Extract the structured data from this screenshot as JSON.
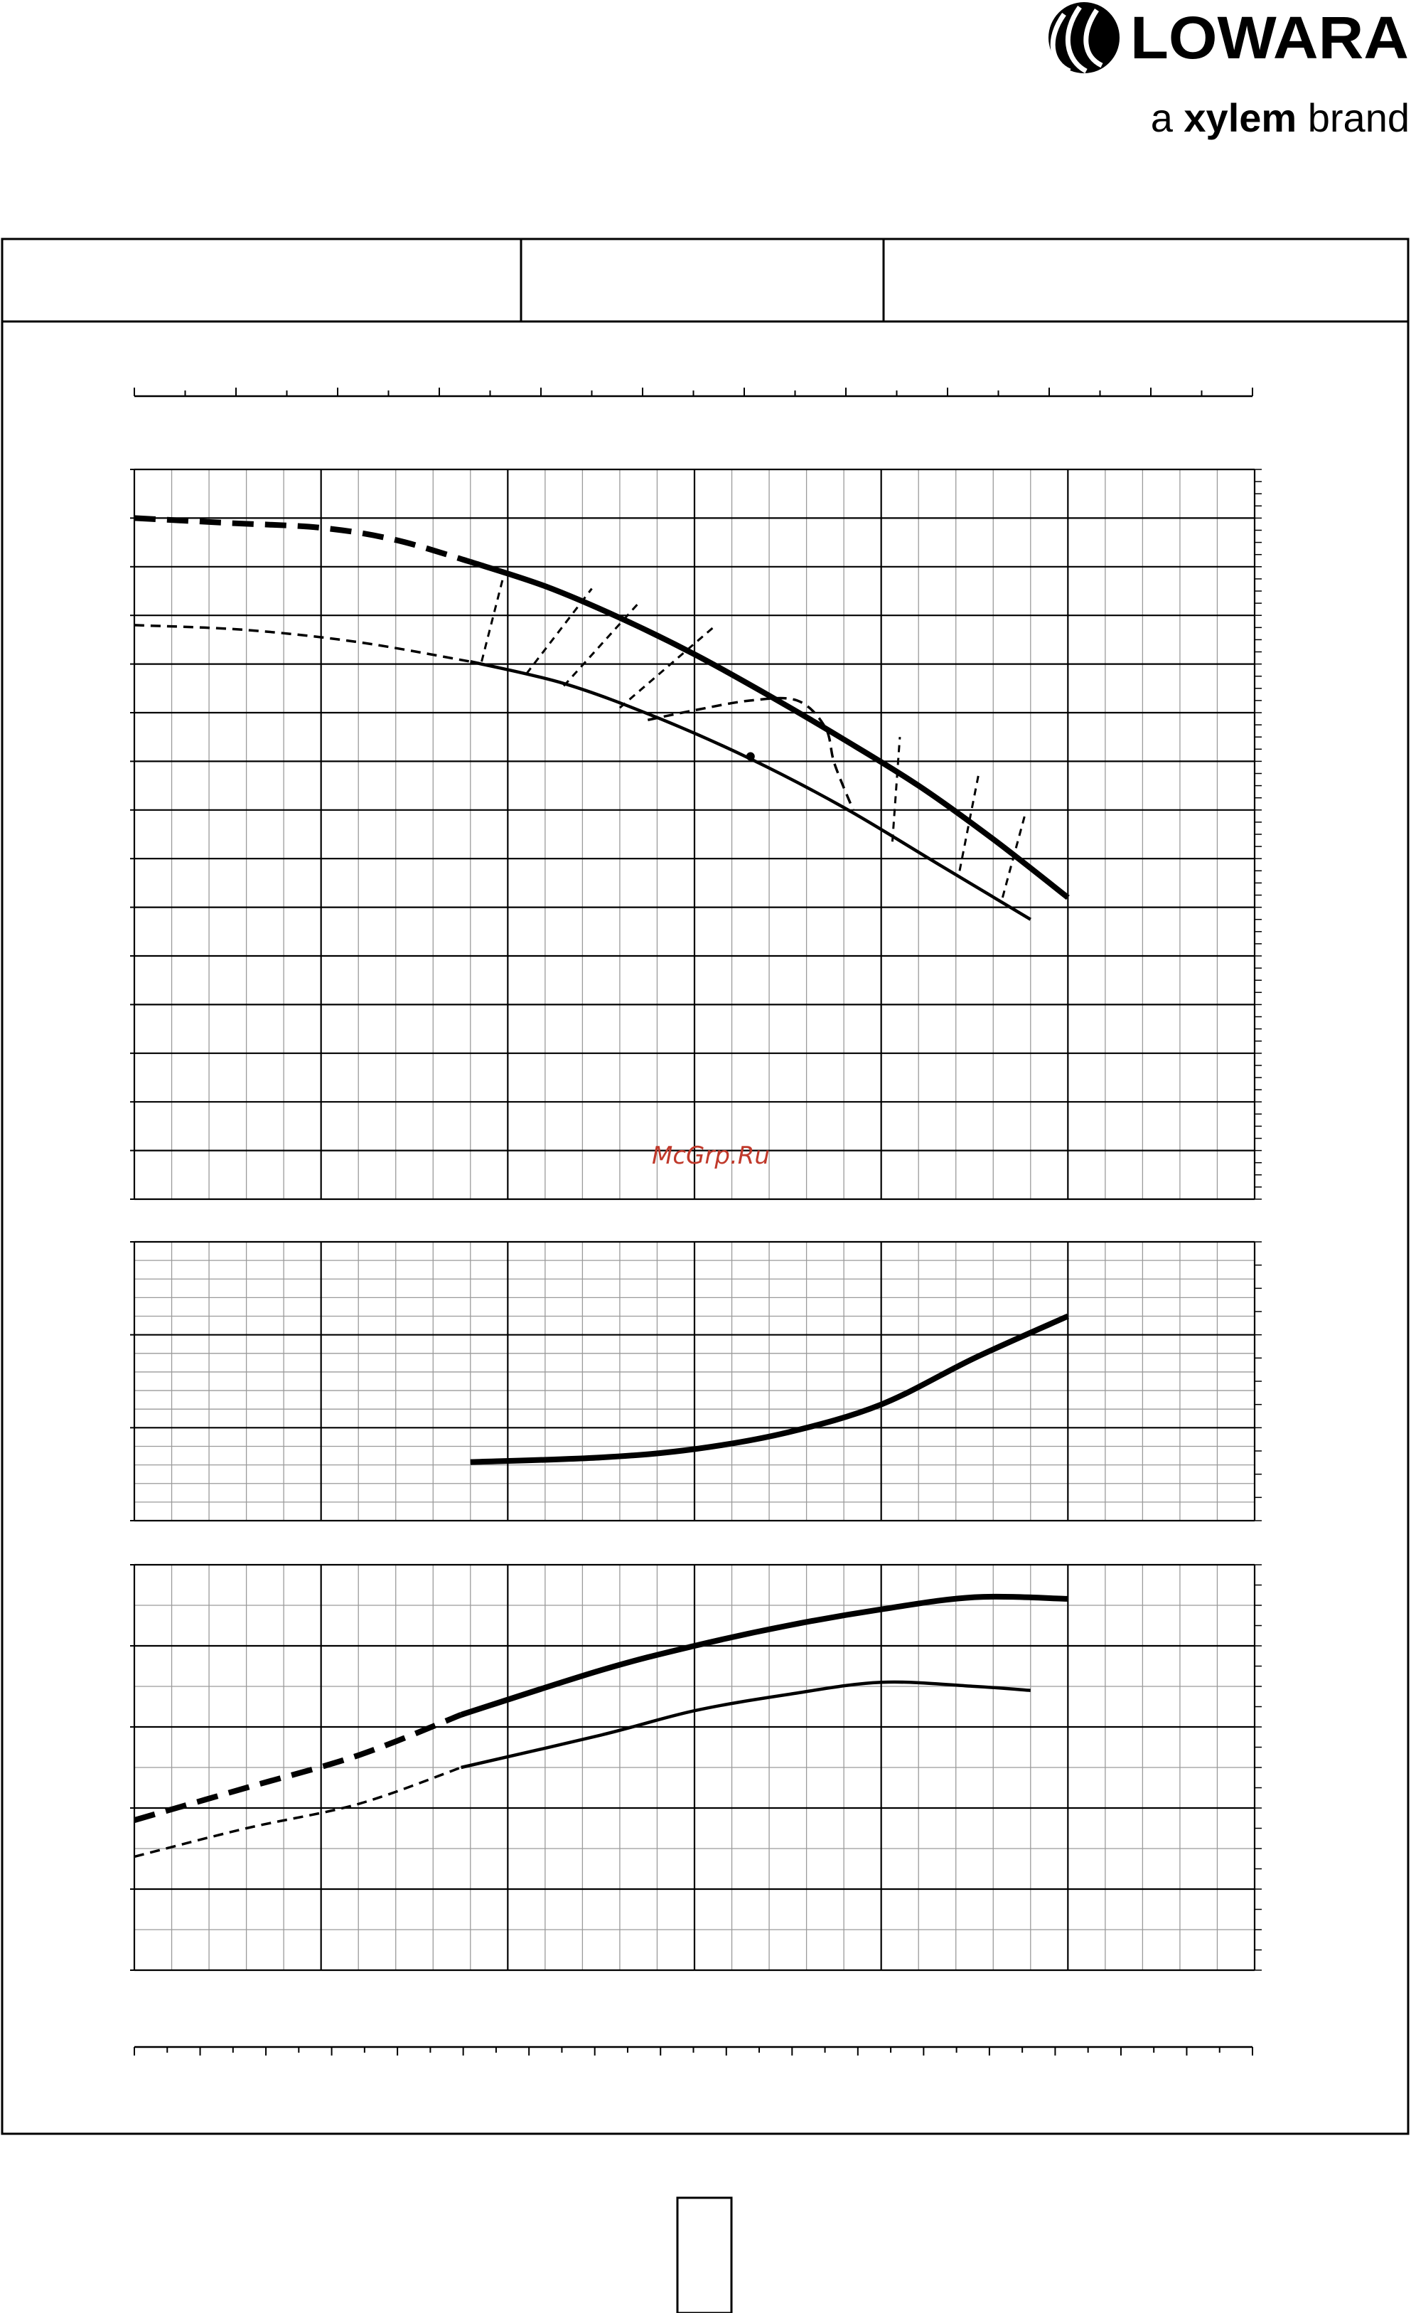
{
  "brand": {
    "name": "LOWARA",
    "tagline_prefix": "a ",
    "tagline_brand": "xylem",
    "tagline_suffix": " brand"
  },
  "watermark": "McGrp.Ru",
  "header_cells": [
    "",
    "",
    ""
  ],
  "page_number": "",
  "colors": {
    "ink": "#000000",
    "grid_minor": "#9a9a9a",
    "watermark": "#c0392b"
  },
  "chart_data": [
    {
      "type": "line",
      "title": "",
      "xlabel": "",
      "ylabel": "",
      "xlim": [
        0,
        6
      ],
      "ylim": [
        0,
        15
      ],
      "grid": true,
      "series": [
        {
          "style": "thick-dashed",
          "x": [
            0,
            0.5,
            1.0,
            1.4,
            1.8
          ],
          "y": [
            14.0,
            13.9,
            13.8,
            13.55,
            13.1
          ]
        },
        {
          "style": "thick-solid",
          "x": [
            1.8,
            2.2,
            2.6,
            3.0,
            3.4,
            3.8,
            4.2,
            4.6,
            5.0
          ],
          "y": [
            13.1,
            12.6,
            11.95,
            11.2,
            10.35,
            9.45,
            8.5,
            7.4,
            6.2
          ]
        },
        {
          "style": "thin-dashed",
          "x": [
            0,
            0.6,
            1.2,
            1.8
          ],
          "y": [
            11.8,
            11.7,
            11.45,
            11.05
          ]
        },
        {
          "style": "thin-solid",
          "x": [
            1.8,
            2.3,
            2.8,
            3.3,
            3.8,
            4.3,
            4.8
          ],
          "y": [
            11.05,
            10.6,
            9.9,
            9.05,
            8.05,
            6.9,
            5.75
          ]
        },
        {
          "style": "thin-dashed",
          "x": [
            2.75,
            3.0,
            3.3,
            3.55,
            3.7,
            3.75,
            3.85
          ],
          "y": [
            9.85,
            10.05,
            10.25,
            10.25,
            9.7,
            8.95,
            8.0
          ]
        },
        {
          "style": "hatch-dashed",
          "x": [
            1.86,
            1.98
          ],
          "y": [
            11.05,
            12.85
          ]
        },
        {
          "style": "hatch-dashed",
          "x": [
            2.1,
            2.45
          ],
          "y": [
            10.8,
            12.55
          ]
        },
        {
          "style": "hatch-dashed",
          "x": [
            2.3,
            2.7
          ],
          "y": [
            10.55,
            12.25
          ]
        },
        {
          "style": "hatch-dashed",
          "x": [
            2.6,
            3.1
          ],
          "y": [
            10.1,
            11.75
          ]
        },
        {
          "style": "hatch-dashed",
          "x": [
            4.06,
            4.1
          ],
          "y": [
            7.35,
            9.5
          ]
        },
        {
          "style": "hatch-dashed",
          "x": [
            4.42,
            4.52
          ],
          "y": [
            6.75,
            8.7
          ]
        },
        {
          "style": "hatch-dashed",
          "x": [
            4.65,
            4.77
          ],
          "y": [
            6.2,
            7.9
          ]
        }
      ],
      "points": [
        {
          "x": 3.3,
          "y": 9.1
        }
      ]
    },
    {
      "type": "line",
      "title": "",
      "xlabel": "",
      "ylabel": "",
      "xlim": [
        0,
        6
      ],
      "ylim": [
        0,
        3
      ],
      "grid": true,
      "series": [
        {
          "style": "thick-solid",
          "x": [
            1.8,
            2.5,
            3.0,
            3.5,
            4.0,
            4.5,
            5.0
          ],
          "y": [
            0.63,
            0.68,
            0.77,
            0.95,
            1.25,
            1.75,
            2.2
          ]
        }
      ]
    },
    {
      "type": "line",
      "title": "",
      "xlabel": "",
      "ylabel": "",
      "xlim": [
        0,
        6
      ],
      "ylim": [
        0,
        5
      ],
      "grid": true,
      "series": [
        {
          "style": "thick-dashed",
          "x": [
            0,
            0.6,
            1.2,
            1.75
          ],
          "y": [
            1.85,
            2.25,
            2.65,
            3.15
          ]
        },
        {
          "style": "thick-solid",
          "x": [
            1.75,
            2.5,
            3.0,
            3.5,
            4.0,
            4.5,
            5.0
          ],
          "y": [
            3.15,
            3.7,
            4.0,
            4.25,
            4.45,
            4.6,
            4.58
          ]
        },
        {
          "style": "thin-dashed",
          "x": [
            0,
            0.6,
            1.2,
            1.75
          ],
          "y": [
            1.4,
            1.75,
            2.05,
            2.5
          ]
        },
        {
          "style": "thin-solid",
          "x": [
            1.75,
            2.5,
            3.0,
            3.5,
            4.0,
            4.5,
            4.8
          ],
          "y": [
            2.5,
            2.9,
            3.2,
            3.4,
            3.55,
            3.5,
            3.45
          ]
        }
      ]
    }
  ]
}
